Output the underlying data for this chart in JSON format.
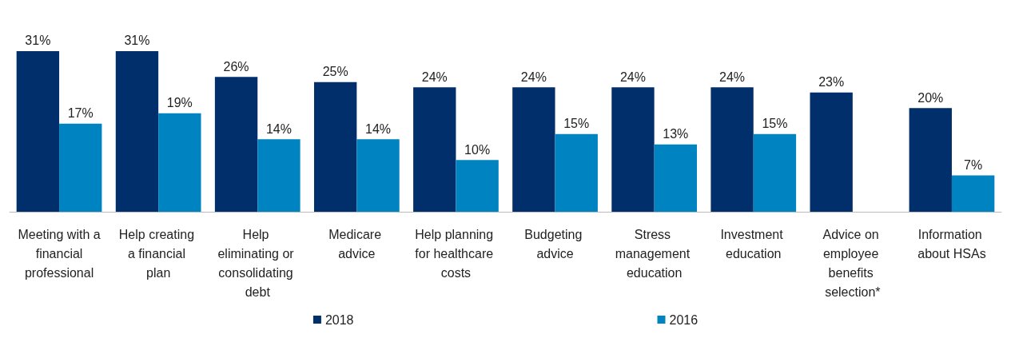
{
  "chart_data": {
    "type": "bar",
    "categories": [
      "Meeting with a financial professional",
      "Help creating a financial plan",
      "Help eliminating or consolidating debt",
      "Medicare advice",
      "Help planning for healthcare costs",
      "Budgeting advice",
      "Stress management education",
      "Investment education",
      "Advice on employee benefits selection*",
      "Information about HSAs"
    ],
    "series": [
      {
        "name": "2018",
        "color": "#002f6c",
        "values": [
          31,
          31,
          26,
          25,
          24,
          24,
          24,
          24,
          23,
          20
        ],
        "value_labels": [
          "31%",
          "31%",
          "26%",
          "25%",
          "24%",
          "24%",
          "24%",
          "24%",
          "23%",
          "20%"
        ]
      },
      {
        "name": "2016",
        "color": "#0083c1",
        "values": [
          17,
          19,
          14,
          14,
          10,
          15,
          13,
          15,
          null,
          7
        ],
        "value_labels": [
          "17%",
          "19%",
          "14%",
          "14%",
          "10%",
          "15%",
          "13%",
          "15%",
          null,
          "7%"
        ]
      }
    ],
    "legend": "bottom",
    "tick_labels": "x"
  }
}
